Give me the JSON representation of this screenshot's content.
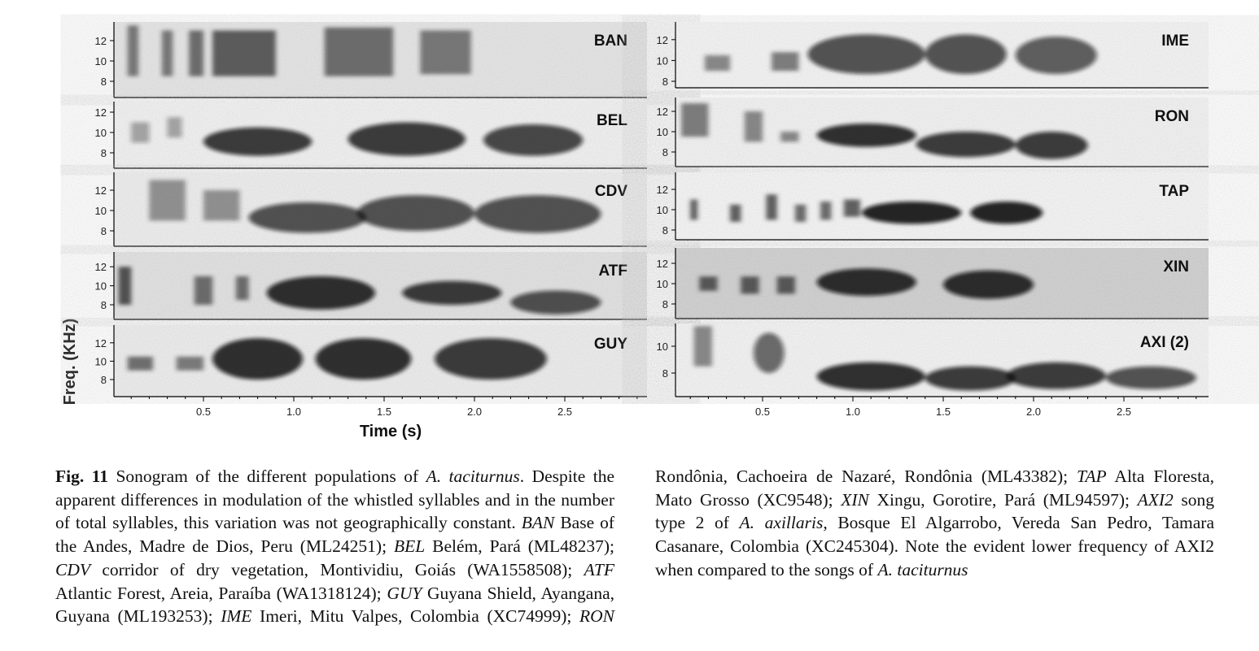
{
  "figure": {
    "y_label": "Freq. (KHz)",
    "x_label": "Time (s)",
    "columns": [
      {
        "panels": [
          {
            "label": "BAN",
            "yticks": [
              8,
              10,
              12
            ]
          },
          {
            "label": "BEL",
            "yticks": [
              8,
              10,
              12
            ]
          },
          {
            "label": "CDV",
            "yticks": [
              8,
              10,
              12
            ]
          },
          {
            "label": "ATF",
            "yticks": [
              8,
              10,
              12
            ]
          },
          {
            "label": "GUY",
            "yticks": [
              8,
              10,
              12
            ]
          }
        ],
        "xticks": [
          0.5,
          {
            "value": 1,
            "label": "1.0"
          },
          1.5,
          {
            "value": 2,
            "label": "2.0"
          },
          2.5
        ]
      },
      {
        "panels": [
          {
            "label": "IME",
            "yticks": [
              8,
              10,
              12
            ]
          },
          {
            "label": "RON",
            "yticks": [
              8,
              10,
              12
            ]
          },
          {
            "label": "TAP",
            "yticks": [
              8,
              10,
              12
            ]
          },
          {
            "label": "XIN",
            "yticks": [
              8,
              10,
              12
            ]
          },
          {
            "label": "AXI (2)",
            "yticks": [
              8,
              10
            ]
          }
        ],
        "xticks": [
          0.5,
          {
            "value": 1,
            "label": "1.0"
          },
          1.5,
          {
            "value": 2,
            "label": "2.0"
          },
          2.5
        ]
      }
    ]
  },
  "caption": [
    {
      "text": "Fig. 11",
      "bold": true
    },
    {
      "text": " Sonogram of the different populations of "
    },
    {
      "text": "A. taciturnus",
      "italic": true
    },
    {
      "text": ". Despite the apparent differences in modulation of the whistled syllables and in the number of total syllables, this variation was not geographically constant. "
    },
    {
      "text": "BAN",
      "italic": true
    },
    {
      "text": " Base of the Andes, Madre de Dios, Peru (ML24251); "
    },
    {
      "text": "BEL",
      "italic": true
    },
    {
      "text": " Belém, Pará (ML48237); "
    },
    {
      "text": "CDV",
      "italic": true
    },
    {
      "text": " corridor of dry vegetation, Montividiu, Goiás (WA1558508); "
    },
    {
      "text": "ATF",
      "italic": true
    },
    {
      "text": " Atlantic Forest, Areia, Paraíba (WA1318124); "
    },
    {
      "text": "GUY",
      "italic": true
    },
    {
      "text": " Guyana Shield, Ayangana, Guyana (ML193253); "
    },
    {
      "text": "IME",
      "italic": true
    },
    {
      "text": " Imeri, Mitu Valpes, Colombia (XC74999); "
    },
    {
      "text": "RON",
      "italic": true
    },
    {
      "text": " Rondônia, Cachoeira de Nazaré, Rondônia (ML43382); "
    },
    {
      "text": "TAP",
      "italic": true
    },
    {
      "text": " Alta Floresta, Mato Grosso (XC9548); "
    },
    {
      "text": "XIN",
      "italic": true
    },
    {
      "text": " Xingu, Gorotire, Pará (ML94597); "
    },
    {
      "text": "AXI2",
      "italic": true
    },
    {
      "text": " song type 2 of "
    },
    {
      "text": "A. axillaris",
      "italic": true
    },
    {
      "text": ", Bosque El Algarrobo, Vereda San Pedro, Tamara Casanare, Colombia (XC245304). Note the evident lower frequency of AXI2 when compared to the songs of "
    },
    {
      "text": "A. taciturnus",
      "italic": true
    }
  ]
}
